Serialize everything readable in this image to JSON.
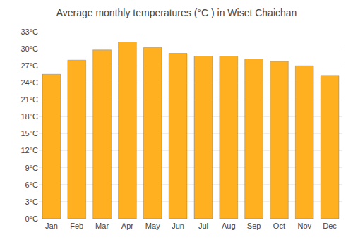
{
  "chart_data": {
    "type": "bar",
    "title": "Average monthly temperatures (°C ) in Wiset Chaichan",
    "categories": [
      "Jan",
      "Feb",
      "Mar",
      "Apr",
      "May",
      "Jun",
      "Jul",
      "Aug",
      "Sep",
      "Oct",
      "Nov",
      "Dec"
    ],
    "values": [
      25.5,
      28.0,
      29.8,
      31.2,
      30.2,
      29.2,
      28.7,
      28.7,
      28.2,
      27.8,
      27.0,
      25.3
    ],
    "color": "#FFB020",
    "ylim": [
      0,
      33
    ],
    "yticks": [
      {
        "value": 0,
        "label": "0°C"
      },
      {
        "value": 3,
        "label": "3°C"
      },
      {
        "value": 6,
        "label": "6°C"
      },
      {
        "value": 9,
        "label": "9°C"
      },
      {
        "value": 12,
        "label": "12°C"
      },
      {
        "value": 15,
        "label": "15°C"
      },
      {
        "value": 18,
        "label": "18°C"
      },
      {
        "value": 21,
        "label": "21°C"
      },
      {
        "value": 24,
        "label": "24°C"
      },
      {
        "value": 27,
        "label": "27°C"
      },
      {
        "value": 30,
        "label": "30°C"
      },
      {
        "value": 33,
        "label": "33°C"
      }
    ],
    "grid": true
  }
}
